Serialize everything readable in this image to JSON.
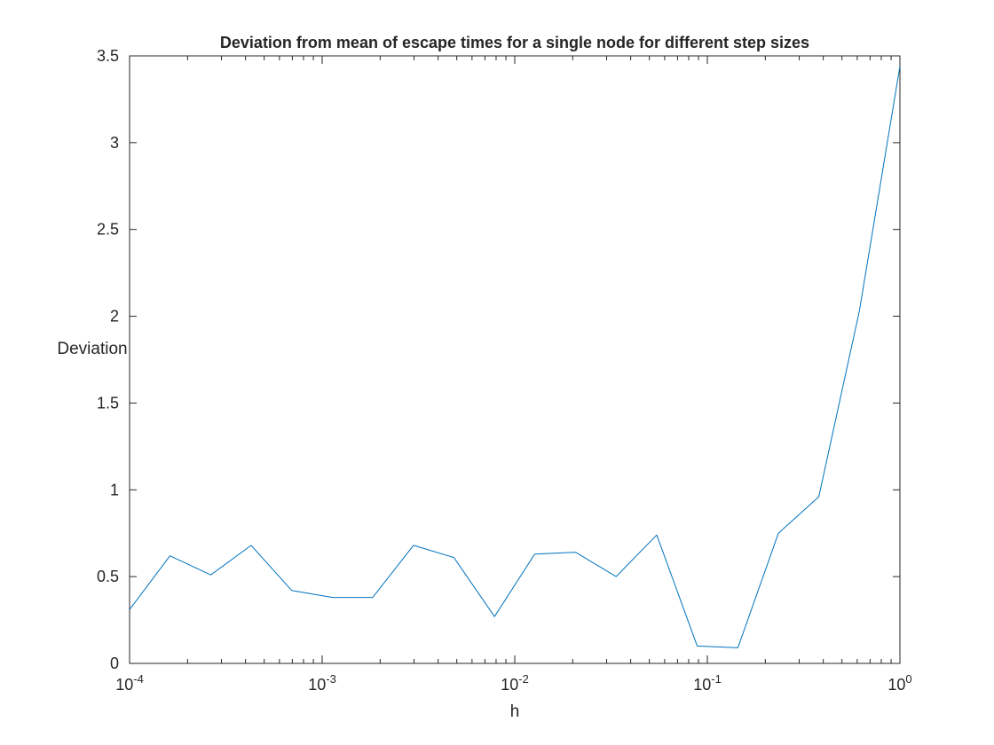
{
  "chart_data": {
    "type": "line",
    "title": "Deviation from mean of escape times for a single node for different step sizes",
    "xlabel": "h",
    "ylabel": "Deviation",
    "xscale": "log",
    "xlim": [
      0.0001,
      1
    ],
    "ylim": [
      0,
      3.5
    ],
    "grid": false,
    "legend": "none",
    "xticks": [
      {
        "value": 0.0001,
        "base": "10",
        "exp": "-4"
      },
      {
        "value": 0.001,
        "base": "10",
        "exp": "-3"
      },
      {
        "value": 0.01,
        "base": "10",
        "exp": "-2"
      },
      {
        "value": 0.1,
        "base": "10",
        "exp": "-1"
      },
      {
        "value": 1,
        "base": "10",
        "exp": "0"
      }
    ],
    "yticks": [
      {
        "value": 0,
        "label": "0"
      },
      {
        "value": 0.5,
        "label": "0.5"
      },
      {
        "value": 1,
        "label": "1"
      },
      {
        "value": 1.5,
        "label": "1.5"
      },
      {
        "value": 2,
        "label": "2"
      },
      {
        "value": 2.5,
        "label": "2.5"
      },
      {
        "value": 3,
        "label": "3"
      },
      {
        "value": 3.5,
        "label": "3.5"
      }
    ],
    "series": [
      {
        "color": "#0072bd",
        "x": [
          0.0001,
          0.000162,
          0.000264,
          0.000428,
          0.000695,
          0.00113,
          0.00183,
          0.00298,
          0.00483,
          0.00785,
          0.0127,
          0.0207,
          0.0336,
          0.0546,
          0.0886,
          0.144,
          0.234,
          0.379,
          0.616,
          1.0
        ],
        "y": [
          0.31,
          0.62,
          0.51,
          0.68,
          0.42,
          0.38,
          0.38,
          0.68,
          0.61,
          0.27,
          0.63,
          0.64,
          0.5,
          0.74,
          0.1,
          0.09,
          0.75,
          0.96,
          2.03,
          3.44
        ]
      }
    ]
  }
}
